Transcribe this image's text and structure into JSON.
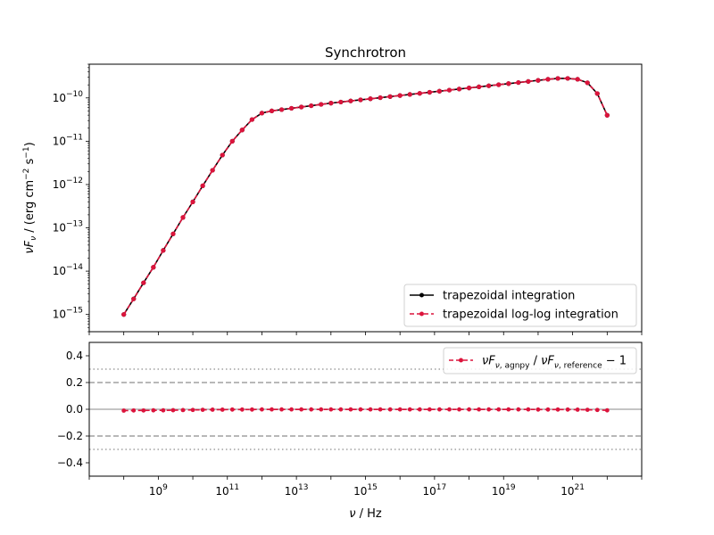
{
  "figure": {
    "title": "Synchrotron",
    "xlabel": "ν / Hz",
    "ylabel_top": "νF_ν / (erg cm^−2 s^−1)"
  },
  "chart_data": [
    {
      "type": "line",
      "panel": "top",
      "title": "Synchrotron",
      "xlabel": "ν / Hz",
      "ylabel": "νF_ν / (erg cm⁻² s⁻¹)",
      "xscale": "log",
      "yscale": "log",
      "xlim": [
        10000000.0,
        1e+23
      ],
      "ylim": [
        4e-16,
        6e-10
      ],
      "xtick_exponents": [
        9,
        11,
        13,
        15,
        17,
        19,
        21
      ],
      "ytick_exponents": [
        -15,
        -14,
        -13,
        -12,
        -11,
        -10
      ],
      "legend_position": "lower-right",
      "x_log10": [
        8.0,
        8.2857,
        8.5714,
        8.8571,
        9.1429,
        9.4286,
        9.7143,
        10.0,
        10.2857,
        10.5714,
        10.8571,
        11.1429,
        11.4286,
        11.7143,
        12.0,
        12.2857,
        12.5714,
        12.8571,
        13.1429,
        13.4286,
        13.7143,
        14.0,
        14.2857,
        14.5714,
        14.8571,
        15.1429,
        15.4286,
        15.7143,
        16.0,
        16.2857,
        16.5714,
        16.8571,
        17.1429,
        17.4286,
        17.7143,
        18.0,
        18.2857,
        18.5714,
        18.8571,
        19.1429,
        19.4286,
        19.7143,
        20.0,
        20.2857,
        20.5714,
        20.8571,
        21.1429,
        21.4286,
        21.7143,
        22.0
      ],
      "series": [
        {
          "name": "trapezoidal integration",
          "color": "#000000",
          "linestyle": "solid",
          "marker": "dot",
          "y_log10": [
            -15.0,
            -14.64,
            -14.27,
            -13.91,
            -13.52,
            -13.14,
            -12.76,
            -12.4,
            -12.03,
            -11.67,
            -11.32,
            -11.0,
            -10.74,
            -10.5,
            -10.35,
            -10.3,
            -10.27,
            -10.24,
            -10.21,
            -10.18,
            -10.15,
            -10.12,
            -10.095,
            -10.07,
            -10.045,
            -10.02,
            -9.995,
            -9.97,
            -9.945,
            -9.92,
            -9.895,
            -9.87,
            -9.845,
            -9.82,
            -9.795,
            -9.77,
            -9.745,
            -9.72,
            -9.695,
            -9.67,
            -9.645,
            -9.62,
            -9.595,
            -9.57,
            -9.55,
            -9.55,
            -9.57,
            -9.65,
            -9.9,
            -10.4
          ]
        },
        {
          "name": "trapezoidal log-log integration",
          "color": "#dc143c",
          "linestyle": "dashed",
          "marker": "dot",
          "y_log10": [
            -15.0,
            -14.64,
            -14.27,
            -13.91,
            -13.52,
            -13.14,
            -12.76,
            -12.4,
            -12.03,
            -11.67,
            -11.32,
            -11.0,
            -10.74,
            -10.5,
            -10.35,
            -10.3,
            -10.27,
            -10.24,
            -10.21,
            -10.18,
            -10.15,
            -10.12,
            -10.095,
            -10.07,
            -10.045,
            -10.02,
            -9.995,
            -9.97,
            -9.945,
            -9.92,
            -9.895,
            -9.87,
            -9.845,
            -9.82,
            -9.795,
            -9.77,
            -9.745,
            -9.72,
            -9.695,
            -9.67,
            -9.645,
            -9.62,
            -9.595,
            -9.57,
            -9.55,
            -9.55,
            -9.57,
            -9.65,
            -9.9,
            -10.4
          ]
        }
      ]
    },
    {
      "type": "line",
      "panel": "bottom",
      "xlabel": "ν / Hz",
      "xscale": "log",
      "yscale": "linear",
      "xlim": [
        10000000.0,
        1e+23
      ],
      "ylim": [
        -0.5,
        0.5
      ],
      "yticks": [
        -0.4,
        -0.2,
        0.0,
        0.2,
        0.4
      ],
      "ytick_labels": [
        "−0.4",
        "−0.2",
        "0.0",
        "0.2",
        "0.4"
      ],
      "legend_position": "upper-right",
      "reference_lines": [
        {
          "y": 0.0,
          "style": "solid",
          "color": "#b0b0b0"
        },
        {
          "y": 0.2,
          "style": "dashed",
          "color": "#a0a0a0"
        },
        {
          "y": -0.2,
          "style": "dashed",
          "color": "#a0a0a0"
        },
        {
          "y": 0.3,
          "style": "dotted",
          "color": "#a0a0a0"
        },
        {
          "y": -0.3,
          "style": "dotted",
          "color": "#a0a0a0"
        }
      ],
      "series": [
        {
          "name": "νF_ν,agnpy / νF_ν,reference − 1",
          "color": "#dc143c",
          "linestyle": "dashed",
          "marker": "dot",
          "y": [
            -0.01,
            -0.009,
            -0.009,
            -0.008,
            -0.008,
            -0.007,
            -0.006,
            -0.005,
            -0.004,
            -0.003,
            -0.003,
            -0.002,
            -0.002,
            -0.002,
            -0.001,
            -0.001,
            -0.001,
            -0.001,
            -0.001,
            -0.001,
            -0.001,
            -0.001,
            -0.001,
            -0.001,
            -0.001,
            -0.001,
            -0.001,
            -0.001,
            -0.001,
            -0.001,
            -0.001,
            -0.001,
            -0.001,
            -0.001,
            -0.001,
            -0.001,
            -0.001,
            -0.001,
            -0.001,
            -0.001,
            -0.001,
            -0.001,
            -0.002,
            -0.002,
            -0.002,
            -0.002,
            -0.003,
            -0.004,
            -0.005,
            -0.008
          ]
        }
      ]
    }
  ]
}
